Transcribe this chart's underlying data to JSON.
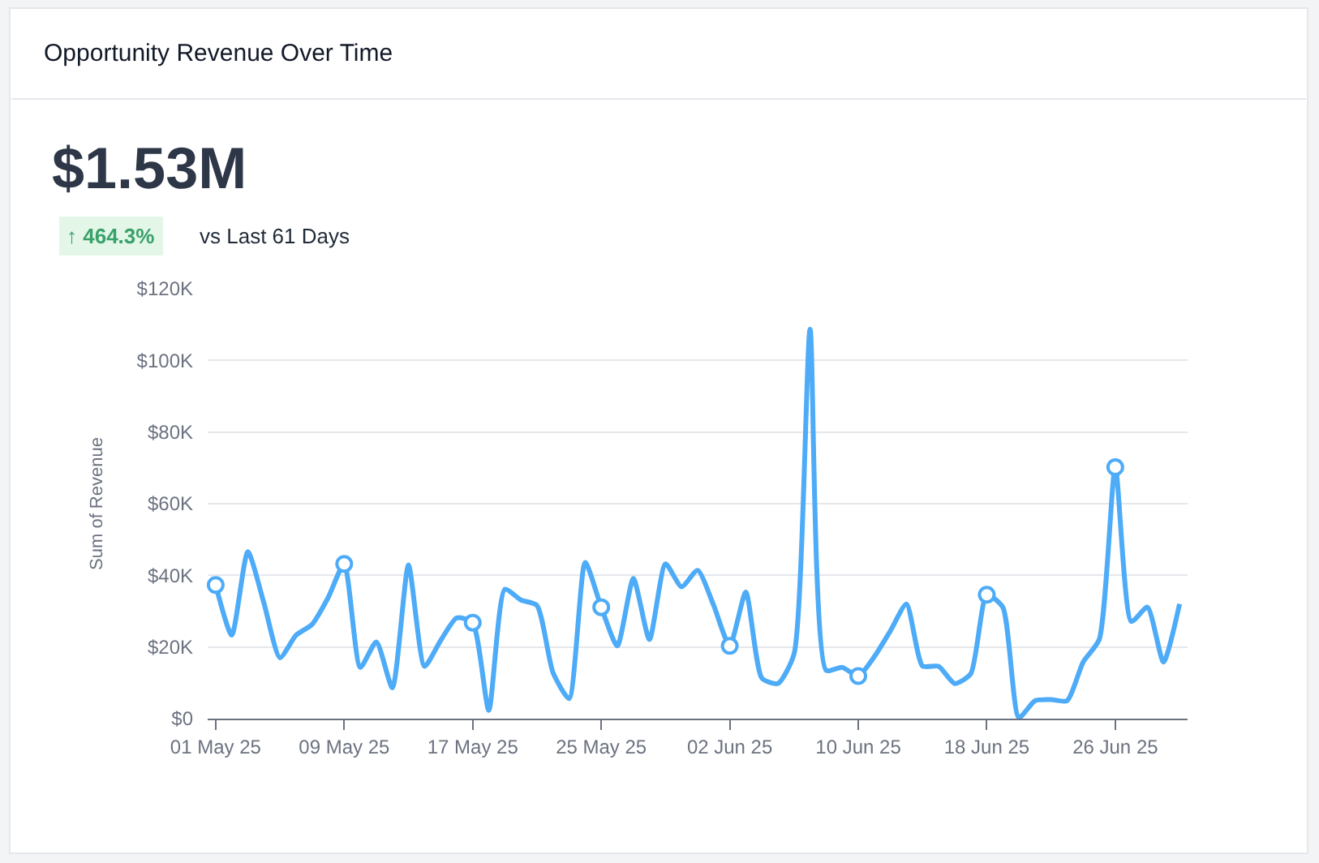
{
  "chart_data": {
    "type": "line",
    "title": "Opportunity Revenue Over Time",
    "ylabel": "Sum of Revenue",
    "annotations": [
      "$1.53M",
      "↑ 464.3%",
      "vs Last 61 Days"
    ],
    "x": [
      "--05-01",
      "--05-02",
      "--05-03",
      "--05-04",
      "--05-05",
      "--05-06",
      "--05-07",
      "--05-08",
      "--05-09",
      "--05-10",
      "--05-11",
      "--05-12",
      "--05-13",
      "--05-14",
      "--05-15",
      "--05-16",
      "--05-17",
      "--05-18",
      "--05-19",
      "--05-20",
      "--05-21",
      "--05-22",
      "--05-23",
      "--05-24",
      "--05-25",
      "--05-26",
      "--05-27",
      "--05-28",
      "--05-29",
      "--05-30",
      "--05-31",
      "--06-01",
      "--06-02",
      "--06-03",
      "--06-04",
      "--06-05",
      "--06-06",
      "--06-07",
      "--06-08",
      "--06-09",
      "--06-10",
      "--06-11",
      "--06-12",
      "--06-13",
      "--06-14",
      "--06-15",
      "--06-16",
      "--06-17",
      "--06-18",
      "--06-19",
      "--06-20",
      "--06-21",
      "--06-22",
      "--06-23",
      "--06-24",
      "--06-25",
      "--06-26",
      "--06-27",
      "--06-28",
      "--06-29",
      "--06-30"
    ],
    "series": [
      {
        "color": "#4dabf7",
        "values": [
          37300,
          23300,
          46600,
          32300,
          17000,
          23300,
          26300,
          33800,
          43200,
          14300,
          21400,
          8600,
          42900,
          14600,
          21800,
          28100,
          26800,
          2300,
          36100,
          33100,
          31600,
          12800,
          5600,
          43600,
          31100,
          20300,
          39100,
          22100,
          43200,
          36800,
          41400,
          31600,
          20300,
          35300,
          11300,
          9800,
          18000,
          108700,
          13500,
          14300,
          11900,
          17300,
          24500,
          32000,
          14700,
          14600,
          9800,
          12500,
          34600,
          31100,
          300,
          5000,
          5300,
          5000,
          15800,
          22100,
          70200,
          27100,
          31100,
          15800,
          32000
        ]
      },
      {
        "type": "scatter",
        "marker": "circle",
        "color": "#4dabf7",
        "x": [
          "--05-01",
          "--05-09",
          "--05-17",
          "--05-25",
          "--06-02",
          "--06-10",
          "--06-18",
          "--06-26"
        ],
        "values": [
          37300,
          43200,
          26800,
          31100,
          20300,
          11900,
          34600,
          70200
        ]
      }
    ],
    "xlim": [
      "--04-30T12:00",
      "--06-30T12:00"
    ],
    "xticks": [
      {
        "value": "--05-01",
        "label": "01 May 25"
      },
      {
        "value": "--05-09",
        "label": "09 May 25"
      },
      {
        "value": "--05-17",
        "label": "17 May 25"
      },
      {
        "value": "--05-25",
        "label": "25 May 25"
      },
      {
        "value": "--06-02",
        "label": "02 Jun 25"
      },
      {
        "value": "--06-10",
        "label": "10 Jun 25"
      },
      {
        "value": "--06-18",
        "label": "18 Jun 25"
      },
      {
        "value": "--06-26",
        "label": "26 Jun 25"
      }
    ],
    "ylim": [
      0,
      120000
    ],
    "yticks": [
      {
        "value": 0,
        "label": "$0"
      },
      {
        "value": 20000,
        "label": "$20K"
      },
      {
        "value": 40000,
        "label": "$40K"
      },
      {
        "value": 60000,
        "label": "$60K"
      },
      {
        "value": 80000,
        "label": "$80K"
      },
      {
        "value": 100000,
        "label": "$100K"
      },
      {
        "value": 120000,
        "label": "$120K"
      }
    ],
    "grid": "y",
    "legend": false,
    "line_style": "solid"
  }
}
